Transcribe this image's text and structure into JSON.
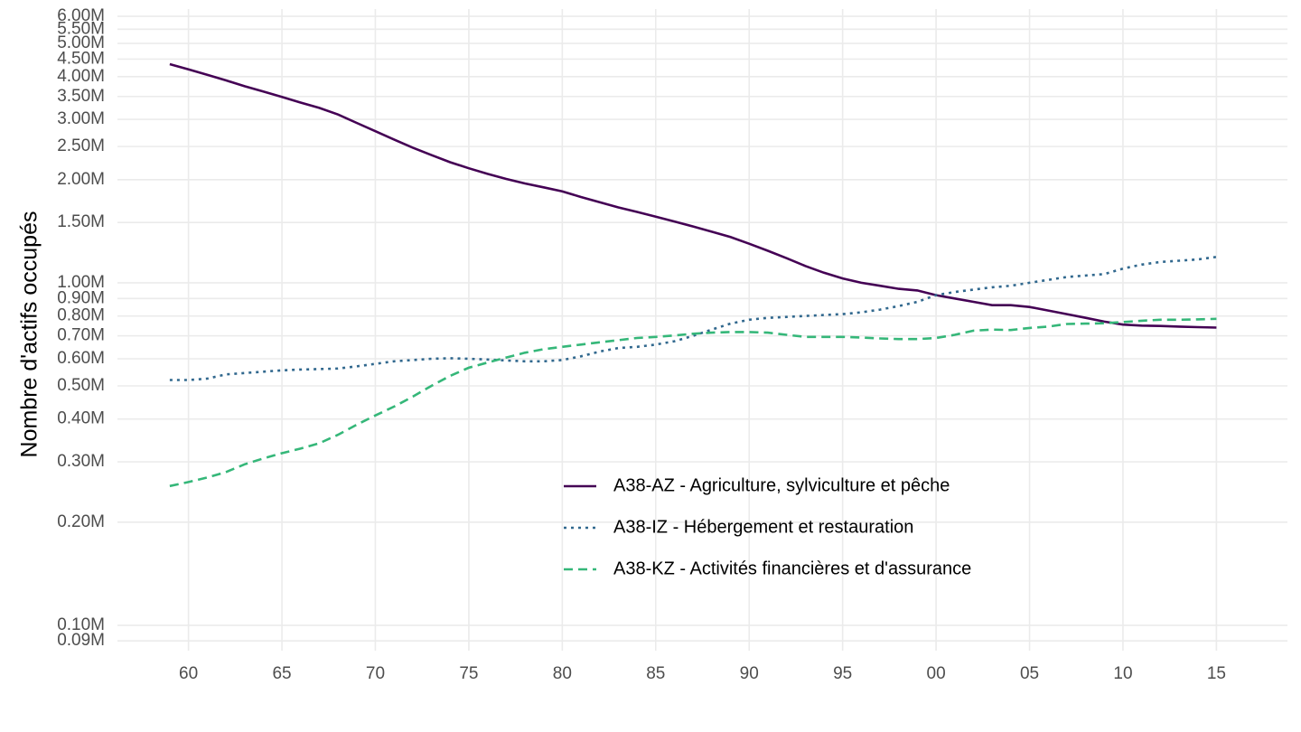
{
  "chart_data": {
    "type": "line",
    "y_label": "Nombre d'actifs occupés",
    "log_y": true,
    "grid": true,
    "legend_position": "inside",
    "x": [
      1959,
      1960,
      1961,
      1962,
      1963,
      1964,
      1965,
      1966,
      1967,
      1968,
      1969,
      1970,
      1971,
      1972,
      1973,
      1974,
      1975,
      1976,
      1977,
      1978,
      1979,
      1980,
      1981,
      1982,
      1983,
      1984,
      1985,
      1986,
      1987,
      1988,
      1989,
      1990,
      1991,
      1992,
      1993,
      1994,
      1995,
      1996,
      1997,
      1998,
      1999,
      2000,
      2001,
      2002,
      2003,
      2004,
      2005,
      2006,
      2007,
      2008,
      2009,
      2010,
      2011,
      2012,
      2013,
      2014,
      2015
    ],
    "xlim": [
      1956.2,
      2018.8
    ],
    "xticks": [
      {
        "value": 1960,
        "label": "60"
      },
      {
        "value": 1965,
        "label": "65"
      },
      {
        "value": 1970,
        "label": "70"
      },
      {
        "value": 1975,
        "label": "75"
      },
      {
        "value": 1980,
        "label": "80"
      },
      {
        "value": 1985,
        "label": "85"
      },
      {
        "value": 1990,
        "label": "90"
      },
      {
        "value": 1995,
        "label": "95"
      },
      {
        "value": 2000,
        "label": "00"
      },
      {
        "value": 2005,
        "label": "05"
      },
      {
        "value": 2010,
        "label": "10"
      },
      {
        "value": 2015,
        "label": "15"
      }
    ],
    "ylim": [
      0.0843,
      6.3
    ],
    "yticks": [
      {
        "value": 0.09,
        "label": "0.09M"
      },
      {
        "value": 0.1,
        "label": "0.10M"
      },
      {
        "value": 0.2,
        "label": "0.20M"
      },
      {
        "value": 0.3,
        "label": "0.30M"
      },
      {
        "value": 0.4,
        "label": "0.40M"
      },
      {
        "value": 0.5,
        "label": "0.50M"
      },
      {
        "value": 0.6,
        "label": "0.60M"
      },
      {
        "value": 0.7,
        "label": "0.70M"
      },
      {
        "value": 0.8,
        "label": "0.80M"
      },
      {
        "value": 0.9,
        "label": "0.90M"
      },
      {
        "value": 1,
        "label": "1.00M"
      },
      {
        "value": 1.5,
        "label": "1.50M"
      },
      {
        "value": 2,
        "label": "2.00M"
      },
      {
        "value": 2.5,
        "label": "2.50M"
      },
      {
        "value": 3,
        "label": "3.00M"
      },
      {
        "value": 3.5,
        "label": "3.50M"
      },
      {
        "value": 4,
        "label": "4.00M"
      },
      {
        "value": 4.5,
        "label": "4.50M"
      },
      {
        "value": 5,
        "label": "5.00M"
      },
      {
        "value": 5.5,
        "label": "5.50M"
      },
      {
        "value": 6,
        "label": "6.00M"
      }
    ],
    "series": [
      {
        "name": "A38-AZ - Agriculture, sylviculture et pêche",
        "color": "#440154",
        "dash": "solid",
        "values": [
          4.35,
          4.2,
          4.05,
          3.9,
          3.75,
          3.62,
          3.49,
          3.36,
          3.24,
          3.1,
          2.93,
          2.77,
          2.62,
          2.48,
          2.36,
          2.25,
          2.16,
          2.08,
          2.01,
          1.95,
          1.9,
          1.85,
          1.78,
          1.72,
          1.66,
          1.61,
          1.56,
          1.51,
          1.46,
          1.41,
          1.36,
          1.3,
          1.24,
          1.18,
          1.12,
          1.07,
          1.03,
          1.0,
          0.98,
          0.96,
          0.95,
          0.92,
          0.9,
          0.88,
          0.86,
          0.86,
          0.85,
          0.83,
          0.81,
          0.79,
          0.77,
          0.755,
          0.75,
          0.748,
          0.745,
          0.742,
          0.74
        ]
      },
      {
        "name": "A38-IZ - Hébergement et restauration",
        "color": "#31688e",
        "dash": "dotted",
        "values": [
          0.52,
          0.52,
          0.525,
          0.54,
          0.545,
          0.55,
          0.555,
          0.558,
          0.56,
          0.562,
          0.57,
          0.58,
          0.59,
          0.595,
          0.6,
          0.602,
          0.6,
          0.597,
          0.593,
          0.59,
          0.59,
          0.595,
          0.61,
          0.63,
          0.645,
          0.65,
          0.66,
          0.675,
          0.7,
          0.73,
          0.76,
          0.78,
          0.79,
          0.795,
          0.8,
          0.805,
          0.81,
          0.82,
          0.835,
          0.855,
          0.88,
          0.92,
          0.94,
          0.955,
          0.97,
          0.98,
          1.0,
          1.02,
          1.04,
          1.05,
          1.06,
          1.1,
          1.13,
          1.15,
          1.16,
          1.17,
          1.19
        ]
      },
      {
        "name": "A38-KZ - Activités financières et d'assurance",
        "color": "#35b779",
        "dash": "dashed",
        "values": [
          0.255,
          0.262,
          0.27,
          0.28,
          0.295,
          0.307,
          0.318,
          0.328,
          0.34,
          0.36,
          0.385,
          0.41,
          0.435,
          0.465,
          0.5,
          0.535,
          0.565,
          0.585,
          0.605,
          0.625,
          0.64,
          0.65,
          0.66,
          0.67,
          0.68,
          0.69,
          0.695,
          0.702,
          0.71,
          0.715,
          0.718,
          0.718,
          0.715,
          0.705,
          0.695,
          0.695,
          0.695,
          0.692,
          0.688,
          0.685,
          0.685,
          0.69,
          0.705,
          0.725,
          0.73,
          0.728,
          0.738,
          0.745,
          0.758,
          0.76,
          0.762,
          0.768,
          0.775,
          0.78,
          0.78,
          0.782,
          0.785
        ]
      }
    ]
  }
}
